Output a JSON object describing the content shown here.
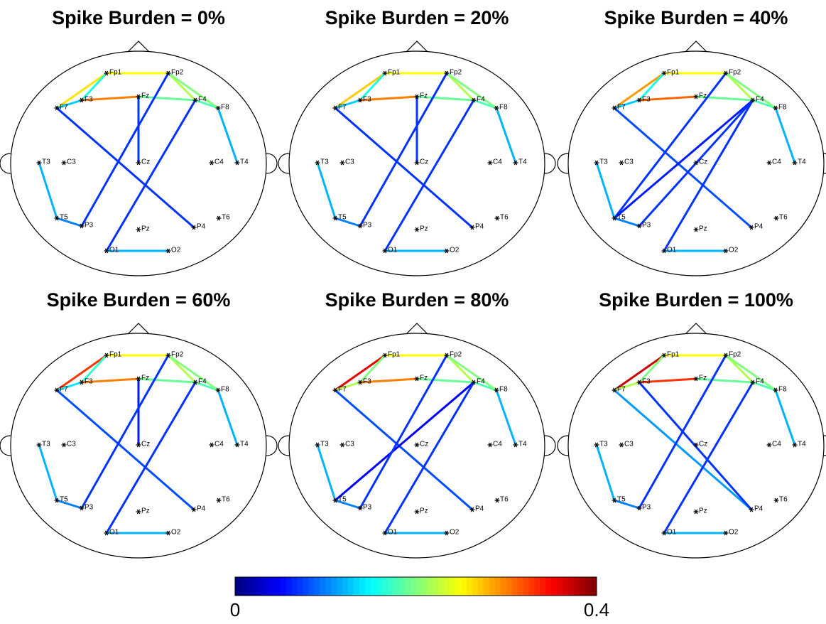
{
  "electrodes": [
    "Fp1",
    "Fp2",
    "F7",
    "F3",
    "Fz",
    "F4",
    "F8",
    "T3",
    "C3",
    "Cz",
    "C4",
    "T4",
    "T5",
    "P3",
    "Pz",
    "P4",
    "T6",
    "O1",
    "O2"
  ],
  "panels": [
    {
      "title": "Spike Burden = 0%",
      "edges": [
        {
          "from": "Fp1",
          "to": "Fp2",
          "value": 0.25
        },
        {
          "from": "Fp1",
          "to": "F7",
          "value": 0.26
        },
        {
          "from": "Fp1",
          "to": "F3",
          "value": 0.16
        },
        {
          "from": "F7",
          "to": "F3",
          "value": 0.13
        },
        {
          "from": "F3",
          "to": "Fz",
          "value": 0.3
        },
        {
          "from": "Fz",
          "to": "F4",
          "value": 0.19
        },
        {
          "from": "Fp2",
          "to": "F4",
          "value": 0.22
        },
        {
          "from": "F4",
          "to": "F8",
          "value": 0.18
        },
        {
          "from": "Fp2",
          "to": "F8",
          "value": 0.2
        },
        {
          "from": "F8",
          "to": "T4",
          "value": 0.12
        },
        {
          "from": "Fz",
          "to": "Cz",
          "value": 0.07
        },
        {
          "from": "F7",
          "to": "P4",
          "value": 0.07
        },
        {
          "from": "Fp2",
          "to": "P3",
          "value": 0.07
        },
        {
          "from": "F4",
          "to": "O1",
          "value": 0.07
        },
        {
          "from": "T3",
          "to": "T5",
          "value": 0.12
        },
        {
          "from": "T5",
          "to": "P3",
          "value": 0.1
        },
        {
          "from": "O1",
          "to": "O2",
          "value": 0.12
        }
      ]
    },
    {
      "title": "Spike Burden = 20%",
      "edges": [
        {
          "from": "Fp1",
          "to": "Fp2",
          "value": 0.25
        },
        {
          "from": "Fp1",
          "to": "F7",
          "value": 0.27
        },
        {
          "from": "Fp1",
          "to": "F3",
          "value": 0.16
        },
        {
          "from": "F7",
          "to": "F3",
          "value": 0.13
        },
        {
          "from": "F3",
          "to": "Fz",
          "value": 0.3
        },
        {
          "from": "Fz",
          "to": "F4",
          "value": 0.19
        },
        {
          "from": "Fp2",
          "to": "F4",
          "value": 0.22
        },
        {
          "from": "F4",
          "to": "F8",
          "value": 0.18
        },
        {
          "from": "Fp2",
          "to": "F8",
          "value": 0.2
        },
        {
          "from": "F8",
          "to": "T4",
          "value": 0.12
        },
        {
          "from": "Fz",
          "to": "Cz",
          "value": 0.07
        },
        {
          "from": "F7",
          "to": "P4",
          "value": 0.07
        },
        {
          "from": "Fp2",
          "to": "P3",
          "value": 0.07
        },
        {
          "from": "F4",
          "to": "O1",
          "value": 0.07
        },
        {
          "from": "T3",
          "to": "T5",
          "value": 0.12
        },
        {
          "from": "T5",
          "to": "P3",
          "value": 0.1
        },
        {
          "from": "O1",
          "to": "O2",
          "value": 0.12
        }
      ]
    },
    {
      "title": "Spike Burden = 40%",
      "edges": [
        {
          "from": "Fp1",
          "to": "Fp2",
          "value": 0.25
        },
        {
          "from": "Fp1",
          "to": "F7",
          "value": 0.29
        },
        {
          "from": "Fp1",
          "to": "F3",
          "value": 0.16
        },
        {
          "from": "F7",
          "to": "F3",
          "value": 0.13
        },
        {
          "from": "F3",
          "to": "Fz",
          "value": 0.31
        },
        {
          "from": "Fz",
          "to": "F4",
          "value": 0.19
        },
        {
          "from": "Fp2",
          "to": "F4",
          "value": 0.22
        },
        {
          "from": "F4",
          "to": "F8",
          "value": 0.18
        },
        {
          "from": "Fp2",
          "to": "F8",
          "value": 0.2
        },
        {
          "from": "F8",
          "to": "T4",
          "value": 0.12
        },
        {
          "from": "F7",
          "to": "P4",
          "value": 0.08
        },
        {
          "from": "Fp2",
          "to": "T5",
          "value": 0.07
        },
        {
          "from": "F4",
          "to": "T5",
          "value": 0.06
        },
        {
          "from": "F4",
          "to": "P3",
          "value": 0.07
        },
        {
          "from": "F4",
          "to": "O1",
          "value": 0.07
        },
        {
          "from": "T3",
          "to": "T5",
          "value": 0.12
        },
        {
          "from": "T5",
          "to": "P3",
          "value": 0.1
        },
        {
          "from": "O1",
          "to": "O2",
          "value": 0.12
        }
      ]
    },
    {
      "title": "Spike Burden = 60%",
      "edges": [
        {
          "from": "Fp1",
          "to": "Fp2",
          "value": 0.25
        },
        {
          "from": "Fp1",
          "to": "F7",
          "value": 0.33
        },
        {
          "from": "Fp1",
          "to": "F3",
          "value": 0.17
        },
        {
          "from": "F7",
          "to": "F3",
          "value": 0.14
        },
        {
          "from": "F3",
          "to": "Fz",
          "value": 0.3
        },
        {
          "from": "Fz",
          "to": "F4",
          "value": 0.19
        },
        {
          "from": "Fp2",
          "to": "F4",
          "value": 0.22
        },
        {
          "from": "F4",
          "to": "F8",
          "value": 0.18
        },
        {
          "from": "Fp2",
          "to": "F8",
          "value": 0.2
        },
        {
          "from": "F8",
          "to": "T4",
          "value": 0.12
        },
        {
          "from": "Fz",
          "to": "Cz",
          "value": 0.06
        },
        {
          "from": "F7",
          "to": "P4",
          "value": 0.08
        },
        {
          "from": "Fp2",
          "to": "P3",
          "value": 0.07
        },
        {
          "from": "F4",
          "to": "O1",
          "value": 0.07
        },
        {
          "from": "T3",
          "to": "T5",
          "value": 0.12
        },
        {
          "from": "T5",
          "to": "P3",
          "value": 0.1
        },
        {
          "from": "O1",
          "to": "O2",
          "value": 0.12
        }
      ]
    },
    {
      "title": "Spike Burden = 80%",
      "edges": [
        {
          "from": "Fp1",
          "to": "Fp2",
          "value": 0.25
        },
        {
          "from": "Fp1",
          "to": "F7",
          "value": 0.36
        },
        {
          "from": "Fp1",
          "to": "F3",
          "value": 0.2
        },
        {
          "from": "F7",
          "to": "F3",
          "value": 0.22
        },
        {
          "from": "F3",
          "to": "Fz",
          "value": 0.3
        },
        {
          "from": "Fz",
          "to": "F4",
          "value": 0.19
        },
        {
          "from": "Fp2",
          "to": "F4",
          "value": 0.22
        },
        {
          "from": "F4",
          "to": "F8",
          "value": 0.18
        },
        {
          "from": "Fp2",
          "to": "F8",
          "value": 0.2
        },
        {
          "from": "F8",
          "to": "T4",
          "value": 0.12
        },
        {
          "from": "F7",
          "to": "P4",
          "value": 0.08
        },
        {
          "from": "F4",
          "to": "T5",
          "value": 0.05
        },
        {
          "from": "Fp2",
          "to": "P3",
          "value": 0.07
        },
        {
          "from": "F4",
          "to": "O1",
          "value": 0.07
        },
        {
          "from": "T3",
          "to": "T5",
          "value": 0.12
        },
        {
          "from": "T5",
          "to": "P3",
          "value": 0.1
        },
        {
          "from": "O1",
          "to": "O2",
          "value": 0.12
        }
      ]
    },
    {
      "title": "Spike Burden = 100%",
      "edges": [
        {
          "from": "Fp1",
          "to": "Fp2",
          "value": 0.25
        },
        {
          "from": "Fp1",
          "to": "F7",
          "value": 0.37
        },
        {
          "from": "Fp1",
          "to": "F3",
          "value": 0.2
        },
        {
          "from": "F7",
          "to": "F3",
          "value": 0.22
        },
        {
          "from": "F3",
          "to": "Fz",
          "value": 0.33
        },
        {
          "from": "Fz",
          "to": "F4",
          "value": 0.19
        },
        {
          "from": "Fp2",
          "to": "F4",
          "value": 0.22
        },
        {
          "from": "F4",
          "to": "F8",
          "value": 0.18
        },
        {
          "from": "Fp2",
          "to": "F8",
          "value": 0.2
        },
        {
          "from": "F8",
          "to": "T4",
          "value": 0.12
        },
        {
          "from": "F7",
          "to": "P4",
          "value": 0.11
        },
        {
          "from": "F3",
          "to": "P4",
          "value": 0.07
        },
        {
          "from": "Fp2",
          "to": "P3",
          "value": 0.07
        },
        {
          "from": "F4",
          "to": "O1",
          "value": 0.07
        },
        {
          "from": "T3",
          "to": "T5",
          "value": 0.12
        },
        {
          "from": "T5",
          "to": "P3",
          "value": 0.1
        },
        {
          "from": "O1",
          "to": "O2",
          "value": 0.12
        }
      ]
    }
  ],
  "colorbar": {
    "lim": [
      0,
      0.4
    ],
    "ticks": [
      0,
      0.4
    ]
  }
}
